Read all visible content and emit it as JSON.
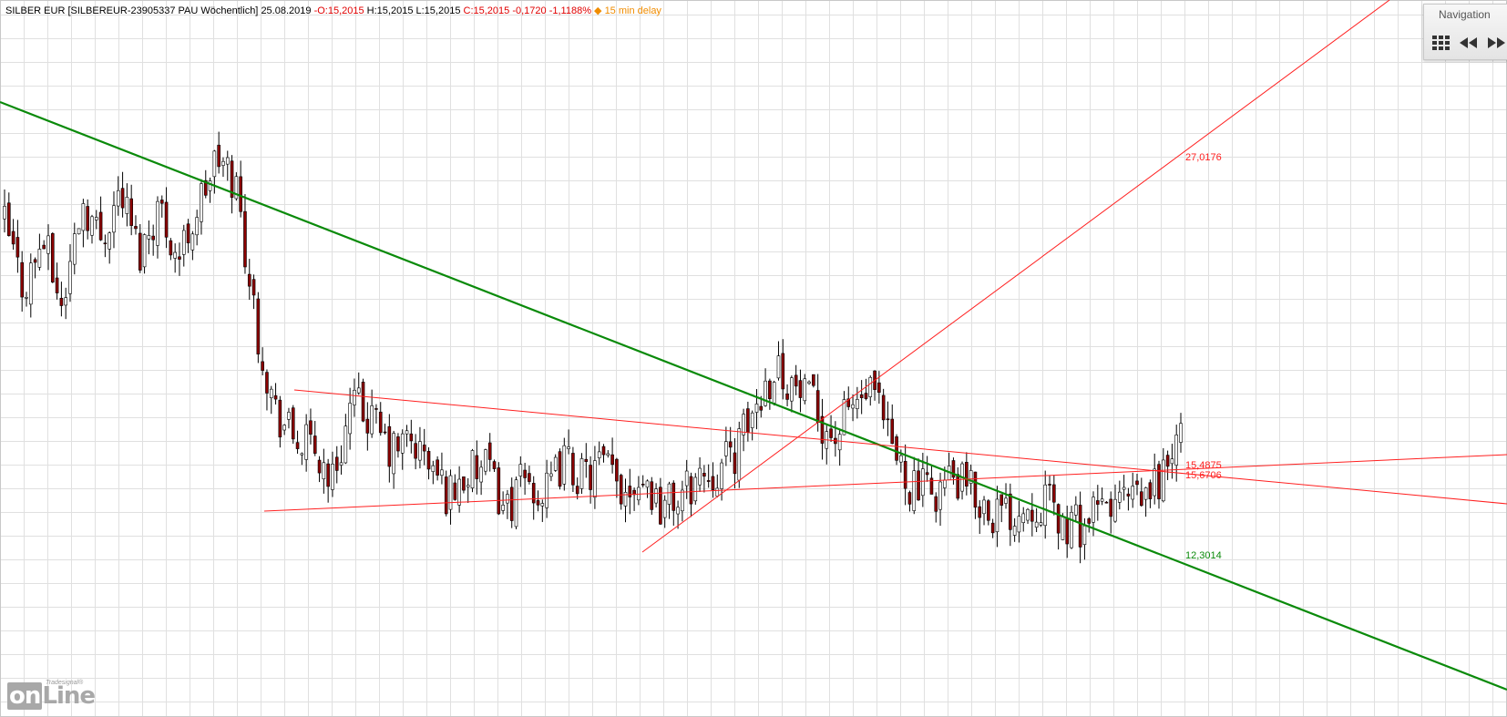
{
  "header": {
    "symbol": "SILBER EUR [SILBEREUR-23905337 PAU Wöchentlich]",
    "date": "25.08.2019",
    "open": "O:15,2015",
    "high": "H:15,2015",
    "low": "L:15,2015",
    "close": "C:15,2015",
    "change": "-0,1720",
    "change_pct": "-1,1188%",
    "delay": "◆ 15 min delay"
  },
  "navigation": {
    "title": "Navigation",
    "buttons": [
      "grid-icon",
      "rewind-icon",
      "fast-forward-icon"
    ]
  },
  "logo": {
    "small_text": "Tradesignal®",
    "big_text": "online"
  },
  "colors": {
    "up_candle": "#ffffff",
    "down_candle": "#8b0000",
    "wick": "#000000",
    "trend_green": "#0a8a0a",
    "trend_red": "#ff2020",
    "grid": "#e0e0e0"
  },
  "chart_data": {
    "type": "candlestick",
    "instrument": "SILBER EUR",
    "interval": "Wöchentlich",
    "close_path": [
      19.5,
      18.2,
      19.2,
      17.8,
      20.0,
      19.2,
      20.2,
      18.9,
      19.9,
      18.8,
      19.8,
      20.8,
      20.3,
      17.6,
      15.8,
      15.2,
      15.0,
      14.4,
      15.9,
      15.6,
      14.9,
      15.2,
      14.7,
      14.1,
      14.5,
      14.6,
      13.8,
      14.4,
      14.0,
      14.8,
      14.4,
      14.7,
      14.2,
      14.5,
      13.9,
      14.0,
      14.5,
      14.6,
      15.0,
      15.9,
      16.7,
      16.2,
      15.8,
      15.2,
      15.9,
      16.1,
      15.0,
      14.3,
      14.1,
      14.4,
      14.2,
      13.8,
      13.7,
      13.9,
      14.0,
      13.4,
      13.5,
      13.8,
      14.0,
      13.9,
      14.5,
      15.2
    ],
    "trend_lines": [
      {
        "name": "green-downtrend",
        "color": "green",
        "label": "12,3014"
      },
      {
        "name": "red-uptrend",
        "color": "red",
        "label": "27,0176"
      },
      {
        "name": "red-lower-channel",
        "color": "red",
        "label": "15,6706"
      },
      {
        "name": "red-upper-channel",
        "color": "red",
        "label": "15,4875"
      }
    ],
    "last_close": 15.2015
  }
}
